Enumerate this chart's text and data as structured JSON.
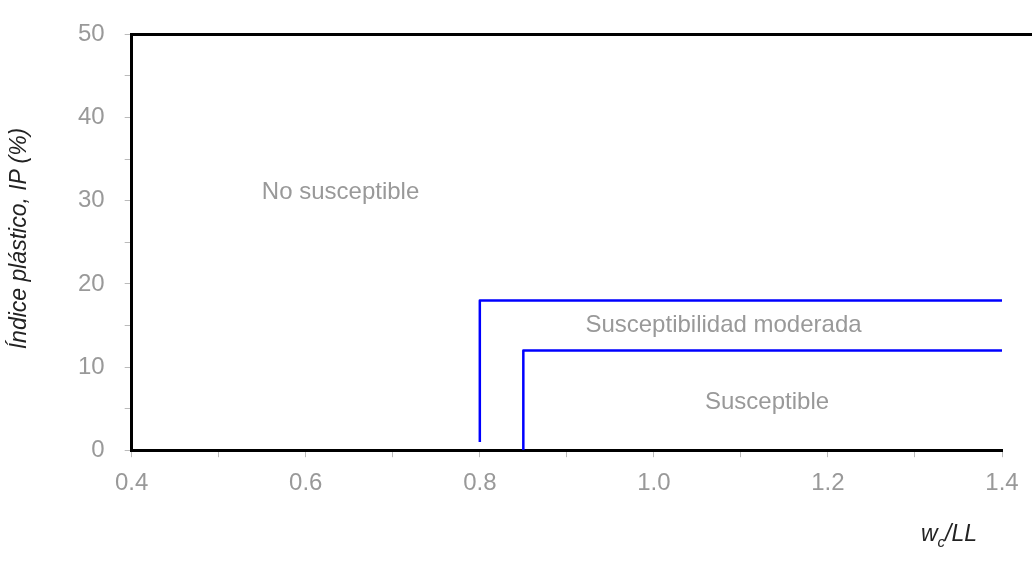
{
  "chart_data": {
    "type": "line",
    "xlabel": "w$_{c}$/LL",
    "ylabel": "Índice plástico, IP (%)",
    "xlim": [
      0.4,
      1.4
    ],
    "xticks": [
      {
        "value": 0.4,
        "label": "0.4"
      },
      {
        "value": 0.5,
        "label": null
      },
      {
        "value": 0.6,
        "label": "0.6"
      },
      {
        "value": 0.7,
        "label": null
      },
      {
        "value": 0.8,
        "label": "0.8"
      },
      {
        "value": 0.9,
        "label": null
      },
      {
        "value": 1.0,
        "label": "1.0"
      },
      {
        "value": 1.1,
        "label": null
      },
      {
        "value": 1.2,
        "label": "1.2"
      },
      {
        "value": 1.3,
        "label": null
      },
      {
        "value": 1.4,
        "label": "1.4"
      }
    ],
    "ylim": [
      0,
      50
    ],
    "yticks": [
      0,
      {
        "value": 5,
        "label": null
      },
      10,
      {
        "value": 15,
        "label": null
      },
      20,
      {
        "value": 25,
        "label": null
      },
      30,
      {
        "value": 35,
        "label": null
      },
      40,
      {
        "value": 45,
        "label": null
      },
      50
    ],
    "series": [
      {
        "color": "#0000ff",
        "x": [
          0.8,
          0.8,
          1.4
        ],
        "values": [
          1,
          18,
          18
        ]
      },
      {
        "color": "#0000ff",
        "x": [
          0.85,
          0.85,
          1.4
        ],
        "values": [
          0,
          12,
          12
        ]
      }
    ],
    "marker": "none",
    "line_style": "solid",
    "grid": false,
    "legend": false,
    "annotations": [
      "No susceptible",
      "Susceptibilidad moderada",
      "Susceptible"
    ]
  }
}
